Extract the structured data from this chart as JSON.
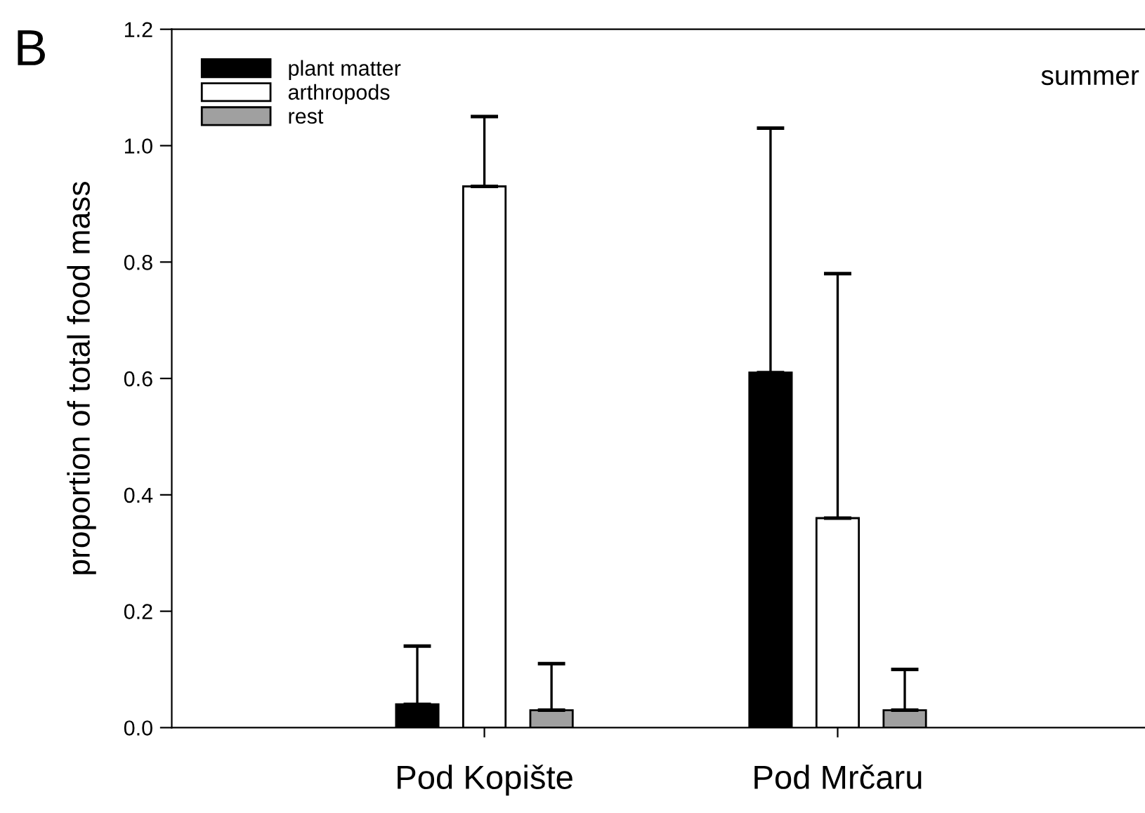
{
  "chart_data": {
    "type": "bar",
    "ylabel": "proportion of total food mass",
    "categories": [
      "Pod Kopište",
      "Pod Mrčaru"
    ],
    "series": [
      {
        "name": "plant matter",
        "color": "#000000",
        "values": [
          0.04,
          0.61
        ],
        "errors": [
          [
            0.04,
            0.14
          ],
          [
            0.61,
            1.03
          ]
        ]
      },
      {
        "name": "arthropods",
        "color": "#ffffff",
        "values": [
          0.93,
          0.36
        ],
        "errors": [
          [
            0.93,
            1.05
          ],
          [
            0.36,
            0.78
          ]
        ]
      },
      {
        "name": "rest",
        "color": "#a0a0a0",
        "values": [
          0.03,
          0.03
        ],
        "errors": [
          [
            0.03,
            0.11
          ],
          [
            0.03,
            0.1
          ]
        ]
      }
    ],
    "ylim": [
      0,
      1.2
    ],
    "yticks": [
      {
        "value": 0,
        "label": "0.0"
      },
      0.2,
      0.4,
      0.6,
      0.8,
      {
        "value": 1,
        "label": "1.0"
      },
      1.2
    ],
    "legend": "top left",
    "grid": false,
    "annotations": [
      "B",
      "summer"
    ]
  }
}
